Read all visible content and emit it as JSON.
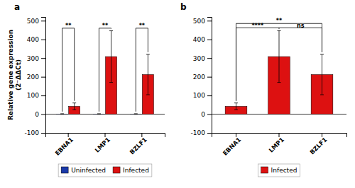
{
  "chart_data": [
    {
      "type": "bar",
      "title": "a",
      "y_label": "Relative gene expression\n(2⁻ΔΔCt)",
      "categories": [
        "EBNA1",
        "LMP1",
        "BZLF1"
      ],
      "series": [
        {
          "name": "Uninfected",
          "color": "#1a3aaa",
          "values": [
            1.0,
            1.0,
            1.0
          ],
          "errors": [
            1.5,
            1.5,
            1.5
          ]
        },
        {
          "name": "Infected",
          "color": "#dd1111",
          "values": [
            42,
            308,
            212
          ],
          "errors": [
            18,
            138,
            108
          ]
        }
      ],
      "annotations": [
        {
          "text": "**",
          "category": "EBNA1",
          "y": 460
        },
        {
          "text": "**",
          "category": "LMP1",
          "y": 460
        },
        {
          "text": "**",
          "category": "BZLF1",
          "y": 460
        }
      ],
      "ylim": [
        -100,
        520
      ],
      "yticks": [
        -100,
        0,
        100,
        200,
        300,
        400,
        500
      ],
      "legend": "bottom"
    },
    {
      "type": "bar",
      "title": "b",
      "categories": [
        "EBNA1",
        "LMP1",
        "BZLF1"
      ],
      "series": [
        {
          "name": "Infected",
          "color": "#dd1111",
          "values": [
            42,
            308,
            212
          ],
          "errors": [
            18,
            138,
            108
          ]
        }
      ],
      "annotations": [
        {
          "text": "****",
          "from": "EBNA1",
          "to": "LMP1",
          "y": 462
        },
        {
          "text": "**",
          "from": "EBNA1",
          "to": "BZLF1",
          "y": 485
        },
        {
          "text": "ns",
          "from": "LMP1",
          "to": "BZLF1",
          "y": 462
        }
      ],
      "ylim": [
        -100,
        520
      ],
      "yticks": [
        -100,
        0,
        100,
        200,
        300,
        400,
        500
      ],
      "legend": "bottom"
    }
  ]
}
